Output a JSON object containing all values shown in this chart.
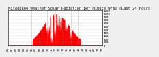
{
  "title": "Milwaukee Weather Solar Radiation per Minute W/m2 (Last 24 Hours)",
  "background_color": "#f0f0f0",
  "plot_bg_color": "#ffffff",
  "grid_color": "#888888",
  "bar_color": "#ff0000",
  "ylim": [
    0,
    1100
  ],
  "yticks": [
    0,
    100,
    200,
    300,
    400,
    500,
    600,
    700,
    800,
    900,
    1000,
    1100
  ],
  "num_points": 1440,
  "title_fontsize": 4.0,
  "tick_fontsize": 3.0,
  "dashed_line_positions": [
    360,
    480,
    600,
    720,
    840,
    960,
    1080
  ],
  "xlim": [
    0,
    1440
  ]
}
